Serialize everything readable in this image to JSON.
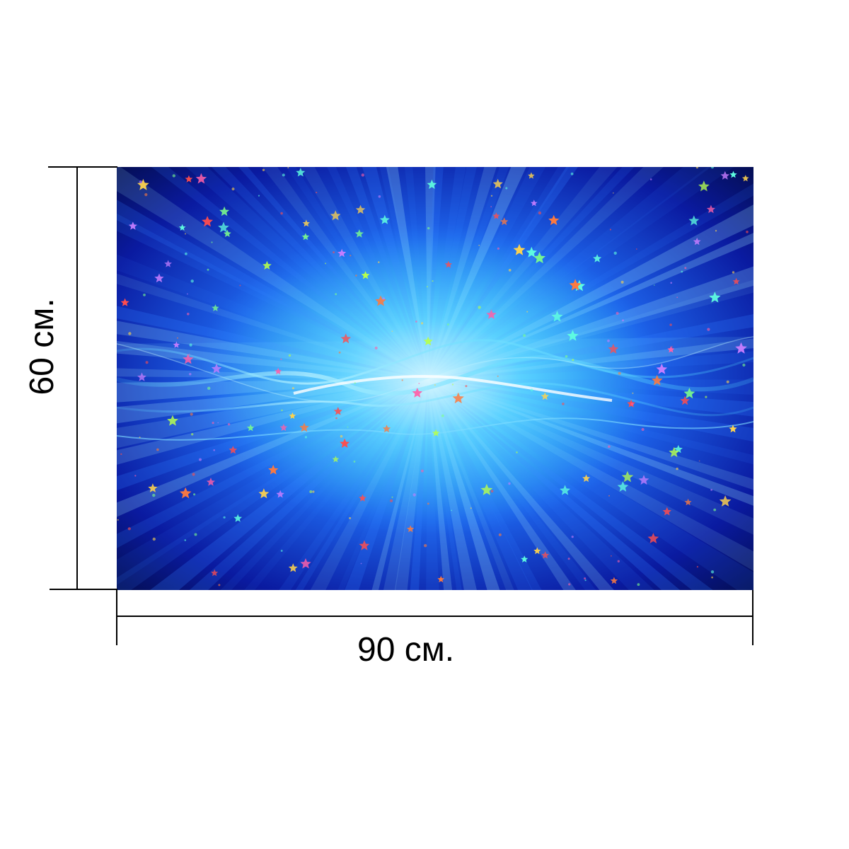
{
  "product": {
    "width_label": "90 см.",
    "height_label": "60 см."
  },
  "artwork": {
    "subject": "blue-light-burst-with-stars",
    "colors": {
      "deep_blue": "#0a1aa0",
      "mid_blue": "#1d63ea",
      "bright_cyan": "#35c6ff",
      "glow": "#dff8ff",
      "dark_edge": "#020a3c"
    }
  },
  "dimension_lines": {
    "color": "#000000"
  }
}
